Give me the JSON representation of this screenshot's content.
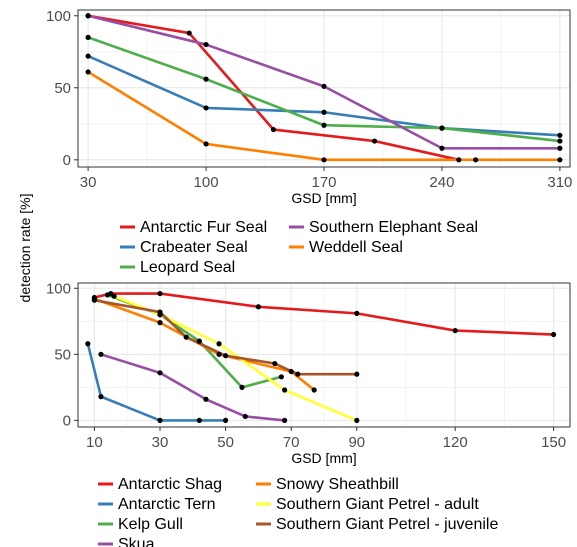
{
  "shared_ylabel": "detection rate [%]",
  "chart_data": [
    {
      "type": "line",
      "xlabel": "GSD [mm]",
      "ylabel": "detection rate [%]",
      "xlim": [
        30,
        310
      ],
      "ylim": [
        0,
        100
      ],
      "xticks": [
        30,
        100,
        170,
        240,
        310
      ],
      "yticks": [
        0,
        50,
        100
      ],
      "grid": true,
      "legend_position": "bottom",
      "series": [
        {
          "name": "Antarctic Fur Seal",
          "color": "#e41a1c",
          "x": [
            30,
            90,
            140,
            200,
            250
          ],
          "y": [
            100,
            88,
            21,
            13,
            0
          ]
        },
        {
          "name": "Crabeater Seal",
          "color": "#377eb8",
          "x": [
            30,
            100,
            170,
            240,
            310
          ],
          "y": [
            72,
            36,
            33,
            22,
            17
          ]
        },
        {
          "name": "Leopard Seal",
          "color": "#4daf4a",
          "x": [
            30,
            100,
            170,
            240,
            310
          ],
          "y": [
            85,
            56,
            24,
            22,
            13
          ]
        },
        {
          "name": "Southern Elephant Seal",
          "color": "#984ea3",
          "x": [
            30,
            100,
            170,
            240,
            310
          ],
          "y": [
            100,
            80,
            51,
            8,
            8
          ]
        },
        {
          "name": "Weddell Seal",
          "color": "#ff7f00",
          "x": [
            30,
            100,
            170,
            260,
            310
          ],
          "y": [
            61,
            11,
            0,
            0,
            0
          ]
        }
      ]
    },
    {
      "type": "line",
      "xlabel": "GSD [mm]",
      "ylabel": "detection rate [%]",
      "xlim": [
        8,
        150
      ],
      "ylim": [
        0,
        100
      ],
      "xticks": [
        10,
        30,
        50,
        70,
        90,
        120,
        150
      ],
      "yticks": [
        0,
        50,
        100
      ],
      "grid": true,
      "legend_position": "bottom",
      "series": [
        {
          "name": "Antarctic Shag",
          "color": "#e41a1c",
          "x": [
            10,
            15,
            30,
            60,
            90,
            120,
            150
          ],
          "y": [
            93,
            96,
            96,
            86,
            81,
            68,
            65
          ]
        },
        {
          "name": "Antarctic Tern",
          "color": "#377eb8",
          "x": [
            8,
            12,
            30,
            42,
            50
          ],
          "y": [
            58,
            18,
            0,
            0,
            0
          ]
        },
        {
          "name": "Kelp Gull",
          "color": "#4daf4a",
          "x": [
            14,
            30,
            42,
            55,
            67
          ],
          "y": [
            95,
            80,
            60,
            25,
            33
          ]
        },
        {
          "name": "Skua",
          "color": "#984ea3",
          "x": [
            12,
            30,
            44,
            56,
            68
          ],
          "y": [
            50,
            36,
            16,
            3,
            0
          ]
        },
        {
          "name": "Snowy Sheathbill",
          "color": "#ff7f00",
          "x": [
            10,
            30,
            48,
            70,
            77
          ],
          "y": [
            92,
            74,
            50,
            37,
            23
          ]
        },
        {
          "name": "Southern Giant Petrel - adult",
          "color": "#ffff33",
          "x": [
            16,
            30,
            48,
            68,
            90
          ],
          "y": [
            94,
            80,
            58,
            23,
            0
          ]
        },
        {
          "name": "Southern Giant Petrel - juvenile",
          "color": "#a65628",
          "x": [
            10,
            30,
            38,
            50,
            65,
            72,
            90
          ],
          "y": [
            91,
            82,
            63,
            49,
            43,
            35,
            35
          ]
        }
      ]
    }
  ]
}
